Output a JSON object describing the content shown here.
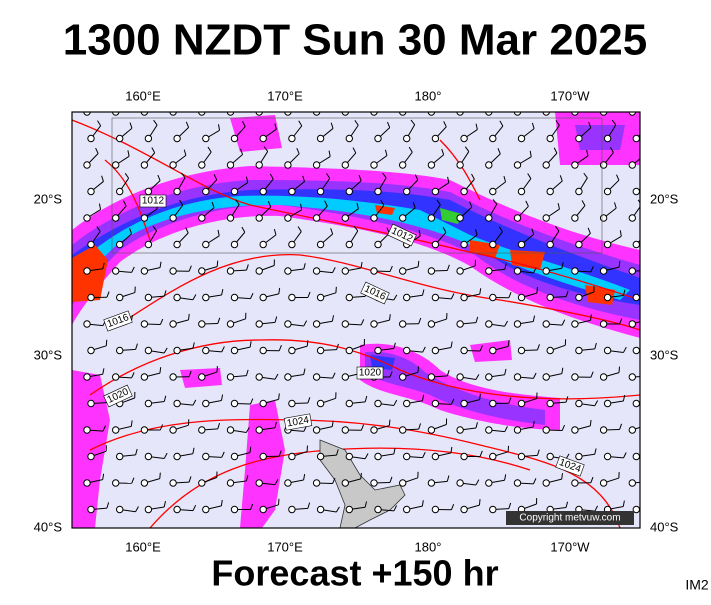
{
  "header": {
    "title": "1300 NZDT Sun 30 Mar 2025"
  },
  "axes": {
    "longitudes": [
      "160°E",
      "170°E",
      "180°",
      "170°W"
    ],
    "latitudes": [
      "20°S",
      "30°S",
      "40°S"
    ]
  },
  "isobar_labels": [
    "1012",
    "1012",
    "1016",
    "1016",
    "1020",
    "1020",
    "1024",
    "1024"
  ],
  "copyright": "Copyright metvuw.com",
  "footer": "Forecast +150 hr",
  "image_id": "IM2"
}
